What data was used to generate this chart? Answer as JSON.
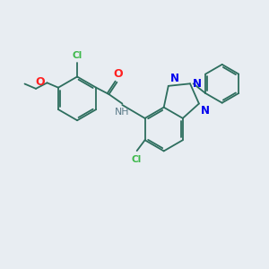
{
  "background_color": "#e8edf2",
  "bond_color": "#2d6e5e",
  "atom_colors": {
    "Cl": "#3cb84a",
    "O": "#ff2020",
    "N": "#0000ee",
    "H": "#5a7a88",
    "C": "#2d6e5e"
  },
  "figsize": [
    3.0,
    3.0
  ],
  "dpi": 100
}
